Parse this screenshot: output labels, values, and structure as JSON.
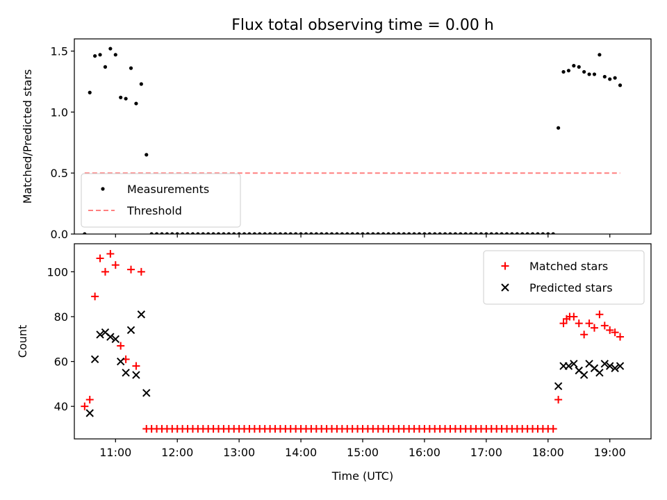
{
  "chart_data": {
    "type": "scatter",
    "title": "Flux total observing time = 0.00 h",
    "xlabel": "Time (UTC)",
    "xlim": [
      "10:20",
      "19:40"
    ],
    "xticks": [
      "11:00",
      "12:00",
      "13:00",
      "14:00",
      "15:00",
      "16:00",
      "17:00",
      "18:00",
      "19:00"
    ],
    "panels": [
      {
        "ylabel": "Matched/Predicted stars",
        "ylim": [
          0,
          1.6
        ],
        "yticks": [
          "0.0",
          "0.5",
          "1.0",
          "1.5"
        ],
        "legend": "lower-left",
        "series": [
          {
            "name": "Measurements",
            "marker": "dot",
            "color": "#000000",
            "points": [
              [
                "10:30",
                0.0
              ],
              [
                "10:35",
                1.16
              ],
              [
                "10:40",
                1.46
              ],
              [
                "10:45",
                1.47
              ],
              [
                "10:50",
                1.37
              ],
              [
                "10:55",
                1.52
              ],
              [
                "11:00",
                1.47
              ],
              [
                "11:05",
                1.12
              ],
              [
                "11:10",
                1.11
              ],
              [
                "11:15",
                1.36
              ],
              [
                "11:20",
                1.07
              ],
              [
                "11:25",
                1.23
              ],
              [
                "11:30",
                0.65
              ],
              [
                "11:35",
                0.0
              ],
              [
                "11:40",
                0.0
              ],
              [
                "11:45",
                0.0
              ],
              [
                "11:50",
                0.0
              ],
              [
                "11:55",
                0.0
              ],
              [
                "12:00",
                0.0
              ],
              [
                "12:05",
                0.0
              ],
              [
                "12:10",
                0.0
              ],
              [
                "12:15",
                0.0
              ],
              [
                "12:20",
                0.0
              ],
              [
                "12:25",
                0.0
              ],
              [
                "12:30",
                0.0
              ],
              [
                "12:35",
                0.0
              ],
              [
                "12:40",
                0.0
              ],
              [
                "12:45",
                0.0
              ],
              [
                "12:50",
                0.0
              ],
              [
                "12:55",
                0.0
              ],
              [
                "13:00",
                0.0
              ],
              [
                "13:05",
                0.0
              ],
              [
                "13:10",
                0.0
              ],
              [
                "13:15",
                0.0
              ],
              [
                "13:20",
                0.0
              ],
              [
                "13:25",
                0.0
              ],
              [
                "13:30",
                0.0
              ],
              [
                "13:35",
                0.0
              ],
              [
                "13:40",
                0.0
              ],
              [
                "13:45",
                0.0
              ],
              [
                "13:50",
                0.0
              ],
              [
                "13:55",
                0.0
              ],
              [
                "14:00",
                0.0
              ],
              [
                "14:05",
                0.0
              ],
              [
                "14:10",
                0.0
              ],
              [
                "14:15",
                0.0
              ],
              [
                "14:20",
                0.0
              ],
              [
                "14:25",
                0.0
              ],
              [
                "14:30",
                0.0
              ],
              [
                "14:35",
                0.0
              ],
              [
                "14:40",
                0.0
              ],
              [
                "14:45",
                0.0
              ],
              [
                "14:50",
                0.0
              ],
              [
                "14:55",
                0.0
              ],
              [
                "15:00",
                0.0
              ],
              [
                "15:05",
                0.0
              ],
              [
                "15:10",
                0.0
              ],
              [
                "15:15",
                0.0
              ],
              [
                "15:20",
                0.0
              ],
              [
                "15:25",
                0.0
              ],
              [
                "15:30",
                0.0
              ],
              [
                "15:35",
                0.0
              ],
              [
                "15:40",
                0.0
              ],
              [
                "15:45",
                0.0
              ],
              [
                "15:50",
                0.0
              ],
              [
                "15:55",
                0.0
              ],
              [
                "16:00",
                0.0
              ],
              [
                "16:05",
                0.0
              ],
              [
                "16:10",
                0.0
              ],
              [
                "16:15",
                0.0
              ],
              [
                "16:20",
                0.0
              ],
              [
                "16:25",
                0.0
              ],
              [
                "16:30",
                0.0
              ],
              [
                "16:35",
                0.0
              ],
              [
                "16:40",
                0.0
              ],
              [
                "16:45",
                0.0
              ],
              [
                "16:50",
                0.0
              ],
              [
                "16:55",
                0.0
              ],
              [
                "17:00",
                0.0
              ],
              [
                "17:05",
                0.0
              ],
              [
                "17:10",
                0.0
              ],
              [
                "17:15",
                0.0
              ],
              [
                "17:20",
                0.0
              ],
              [
                "17:25",
                0.0
              ],
              [
                "17:30",
                0.0
              ],
              [
                "17:35",
                0.0
              ],
              [
                "17:40",
                0.0
              ],
              [
                "17:45",
                0.0
              ],
              [
                "17:50",
                0.0
              ],
              [
                "17:55",
                0.0
              ],
              [
                "18:00",
                0.0
              ],
              [
                "18:05",
                0.0
              ],
              [
                "18:10",
                0.87
              ],
              [
                "18:15",
                1.33
              ],
              [
                "18:20",
                1.34
              ],
              [
                "18:25",
                1.38
              ],
              [
                "18:30",
                1.37
              ],
              [
                "18:35",
                1.33
              ],
              [
                "18:40",
                1.31
              ],
              [
                "18:45",
                1.31
              ],
              [
                "18:50",
                1.47
              ],
              [
                "18:55",
                1.29
              ],
              [
                "19:00",
                1.27
              ],
              [
                "19:05",
                1.28
              ],
              [
                "19:10",
                1.22
              ]
            ]
          },
          {
            "name": "Threshold",
            "line": "dashed",
            "color": "#ff7f7f",
            "points": [
              [
                "10:30",
                0.5
              ],
              [
                "19:10",
                0.5
              ]
            ]
          }
        ]
      },
      {
        "ylabel": "Count",
        "ylim": [
          25.5,
          112.5
        ],
        "yticks": [
          "40",
          "60",
          "80",
          "100"
        ],
        "legend": "top-right",
        "series": [
          {
            "name": "Matched stars",
            "marker": "plus",
            "color": "#ff0000",
            "points": [
              [
                "10:30",
                40
              ],
              [
                "10:35",
                43
              ],
              [
                "10:40",
                89
              ],
              [
                "10:45",
                106
              ],
              [
                "10:50",
                100
              ],
              [
                "10:55",
                108
              ],
              [
                "11:00",
                103
              ],
              [
                "11:05",
                67
              ],
              [
                "11:10",
                61
              ],
              [
                "11:15",
                101
              ],
              [
                "11:20",
                58
              ],
              [
                "11:25",
                100
              ],
              [
                "11:30",
                30
              ],
              [
                "11:35",
                30
              ],
              [
                "11:40",
                30
              ],
              [
                "11:45",
                30
              ],
              [
                "11:50",
                30
              ],
              [
                "11:55",
                30
              ],
              [
                "12:00",
                30
              ],
              [
                "12:05",
                30
              ],
              [
                "12:10",
                30
              ],
              [
                "12:15",
                30
              ],
              [
                "12:20",
                30
              ],
              [
                "12:25",
                30
              ],
              [
                "12:30",
                30
              ],
              [
                "12:35",
                30
              ],
              [
                "12:40",
                30
              ],
              [
                "12:45",
                30
              ],
              [
                "12:50",
                30
              ],
              [
                "12:55",
                30
              ],
              [
                "13:00",
                30
              ],
              [
                "13:05",
                30
              ],
              [
                "13:10",
                30
              ],
              [
                "13:15",
                30
              ],
              [
                "13:20",
                30
              ],
              [
                "13:25",
                30
              ],
              [
                "13:30",
                30
              ],
              [
                "13:35",
                30
              ],
              [
                "13:40",
                30
              ],
              [
                "13:45",
                30
              ],
              [
                "13:50",
                30
              ],
              [
                "13:55",
                30
              ],
              [
                "14:00",
                30
              ],
              [
                "14:05",
                30
              ],
              [
                "14:10",
                30
              ],
              [
                "14:15",
                30
              ],
              [
                "14:20",
                30
              ],
              [
                "14:25",
                30
              ],
              [
                "14:30",
                30
              ],
              [
                "14:35",
                30
              ],
              [
                "14:40",
                30
              ],
              [
                "14:45",
                30
              ],
              [
                "14:50",
                30
              ],
              [
                "14:55",
                30
              ],
              [
                "15:00",
                30
              ],
              [
                "15:05",
                30
              ],
              [
                "15:10",
                30
              ],
              [
                "15:15",
                30
              ],
              [
                "15:20",
                30
              ],
              [
                "15:25",
                30
              ],
              [
                "15:30",
                30
              ],
              [
                "15:35",
                30
              ],
              [
                "15:40",
                30
              ],
              [
                "15:45",
                30
              ],
              [
                "15:50",
                30
              ],
              [
                "15:55",
                30
              ],
              [
                "16:00",
                30
              ],
              [
                "16:05",
                30
              ],
              [
                "16:10",
                30
              ],
              [
                "16:15",
                30
              ],
              [
                "16:20",
                30
              ],
              [
                "16:25",
                30
              ],
              [
                "16:30",
                30
              ],
              [
                "16:35",
                30
              ],
              [
                "16:40",
                30
              ],
              [
                "16:45",
                30
              ],
              [
                "16:50",
                30
              ],
              [
                "16:55",
                30
              ],
              [
                "17:00",
                30
              ],
              [
                "17:05",
                30
              ],
              [
                "17:10",
                30
              ],
              [
                "17:15",
                30
              ],
              [
                "17:20",
                30
              ],
              [
                "17:25",
                30
              ],
              [
                "17:30",
                30
              ],
              [
                "17:35",
                30
              ],
              [
                "17:40",
                30
              ],
              [
                "17:45",
                30
              ],
              [
                "17:50",
                30
              ],
              [
                "17:55",
                30
              ],
              [
                "18:00",
                30
              ],
              [
                "18:05",
                30
              ],
              [
                "18:10",
                43
              ],
              [
                "18:15",
                77
              ],
              [
                "18:18",
                79
              ],
              [
                "18:21",
                80
              ],
              [
                "18:25",
                80
              ],
              [
                "18:30",
                77
              ],
              [
                "18:35",
                72
              ],
              [
                "18:40",
                77
              ],
              [
                "18:45",
                75
              ],
              [
                "18:50",
                81
              ],
              [
                "18:55",
                76
              ],
              [
                "19:00",
                74
              ],
              [
                "19:05",
                73
              ],
              [
                "19:10",
                71
              ]
            ]
          },
          {
            "name": "Predicted stars",
            "marker": "x",
            "color": "#000000",
            "points": [
              [
                "10:35",
                37
              ],
              [
                "10:40",
                61
              ],
              [
                "10:45",
                72
              ],
              [
                "10:50",
                73
              ],
              [
                "10:55",
                71
              ],
              [
                "11:00",
                70
              ],
              [
                "11:05",
                60
              ],
              [
                "11:10",
                55
              ],
              [
                "11:15",
                74
              ],
              [
                "11:20",
                54
              ],
              [
                "11:25",
                81
              ],
              [
                "11:30",
                46
              ],
              [
                "18:10",
                49
              ],
              [
                "18:15",
                58
              ],
              [
                "18:20",
                58
              ],
              [
                "18:25",
                59
              ],
              [
                "18:30",
                56
              ],
              [
                "18:35",
                54
              ],
              [
                "18:40",
                59
              ],
              [
                "18:45",
                57
              ],
              [
                "18:50",
                55
              ],
              [
                "18:55",
                59
              ],
              [
                "19:00",
                58
              ],
              [
                "19:05",
                57
              ],
              [
                "19:10",
                58
              ]
            ]
          }
        ]
      }
    ]
  }
}
